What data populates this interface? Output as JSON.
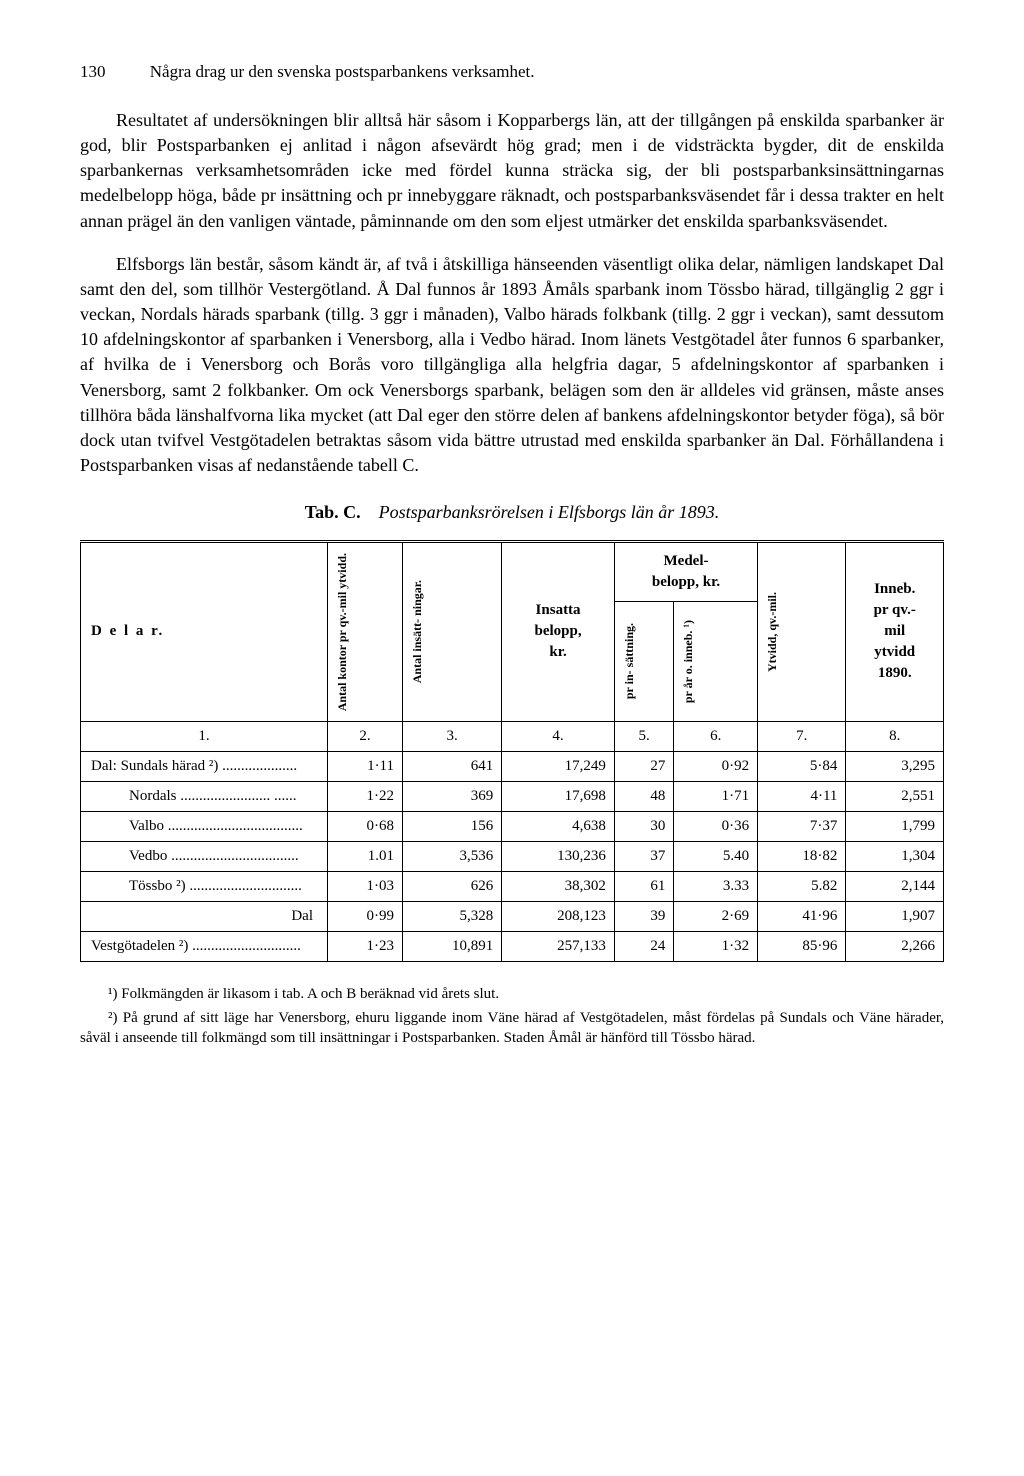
{
  "header": {
    "page_number": "130",
    "running_title": "Några drag ur den svenska postsparbankens verksamhet."
  },
  "paragraphs": {
    "p1": "Resultatet af undersökningen blir alltså här såsom i Kopparbergs län, att der tillgången på enskilda sparbanker är god, blir Postsparbanken ej anlitad i någon afsevärdt hög grad; men i de vidsträckta bygder, dit de enskilda sparbankernas verksamhetsområden icke med fördel kunna sträcka sig, der bli postsparbanksinsättningarnas medelbelopp höga, både pr insättning och pr innebyggare räknadt, och postsparbanksväsendet får i dessa trakter en helt annan prägel än den vanligen väntade, påminnande om den som eljest utmärker det enskilda sparbanksväsendet.",
    "p2": "Elfsborgs län består, såsom kändt är, af två i åtskilliga hänseenden väsentligt olika delar, nämligen landskapet Dal samt den del, som tillhör Vestergötland. Å Dal funnos år 1893 Åmåls sparbank inom Tössbo härad, tillgänglig 2 ggr i veckan, Nordals härads sparbank (tillg. 3 ggr i månaden), Valbo härads folkbank (tillg. 2 ggr i veckan), samt dessutom 10 afdelningskontor af sparbanken i Venersborg, alla i Vedbo härad. Inom länets Vestgötadel åter funnos 6 sparbanker, af hvilka de i Venersborg och Borås voro tillgängliga alla helgfria dagar, 5 afdelningskontor af sparbanken i Venersborg, samt 2 folkbanker. Om ock Venersborgs sparbank, belägen som den är alldeles vid gränsen, måste anses tillhöra båda länshalfvorna lika mycket (att Dal eger den större delen af bankens afdelningskontor betyder föga), så bör dock utan tvifvel Vestgötadelen betraktas såsom vida bättre utrustad med enskilda sparbanker än Dal. Förhållandena i Postsparbanken visas af nedanstående tabell C."
  },
  "table": {
    "title_label": "Tab. C.",
    "title_desc": "Postsparbanksrörelsen i Elfsborgs län år 1893.",
    "headers": {
      "delar": "D e l a r.",
      "col2": "Antal kontor\npr qv.-mil\nytvidd.",
      "col3": "Antal insätt-\nningar.",
      "col4_top": "Insatta",
      "col4_mid": "belopp,",
      "col4_bot": "kr.",
      "col5_group_top": "Medel-",
      "col5_group_bot": "belopp, kr.",
      "col5": "pr in-\nsättning.",
      "col6": "pr år o.\ninneb. ¹)",
      "col7": "Ytvidd,\nqv.-mil.",
      "col8_l1": "Inneb.",
      "col8_l2": "pr qv.-",
      "col8_l3": "mil",
      "col8_l4": "ytvidd",
      "col8_l5": "1890."
    },
    "numrow": [
      "1.",
      "2.",
      "3.",
      "4.",
      "5.",
      "6.",
      "7.",
      "8."
    ],
    "rows": [
      {
        "label": "Dal: Sundals härad ²) ....................",
        "c2": "1·11",
        "c3": "641",
        "c4": "17,249",
        "c5": "27",
        "c6": "0·92",
        "c7": "5·84",
        "c8": "3,295"
      },
      {
        "label": "Nordals ........................ ......",
        "c2": "1·22",
        "c3": "369",
        "c4": "17,698",
        "c5": "48",
        "c6": "1·71",
        "c7": "4·11",
        "c8": "2,551"
      },
      {
        "label": "Valbo ....................................",
        "c2": "0·68",
        "c3": "156",
        "c4": "4,638",
        "c5": "30",
        "c6": "0·36",
        "c7": "7·37",
        "c8": "1,799"
      },
      {
        "label": "Vedbo ..................................",
        "c2": "1.01",
        "c3": "3,536",
        "c4": "130,236",
        "c5": "37",
        "c6": "5.40",
        "c7": "18·82",
        "c8": "1,304"
      },
      {
        "label": "Tössbo ²) ..............................",
        "c2": "1·03",
        "c3": "626",
        "c4": "38,302",
        "c5": "61",
        "c6": "3.33",
        "c7": "5.82",
        "c8": "2,144"
      }
    ],
    "subtotal": {
      "label": "Dal",
      "c2": "0·99",
      "c3": "5,328",
      "c4": "208,123",
      "c5": "39",
      "c6": "2·69",
      "c7": "41·96",
      "c8": "1,907"
    },
    "lastrow": {
      "label": "Vestgötadelen ²) .............................",
      "c2": "1·23",
      "c3": "10,891",
      "c4": "257,133",
      "c5": "24",
      "c6": "1·32",
      "c7": "85·96",
      "c8": "2,266"
    }
  },
  "footnotes": {
    "f1": "¹) Folkmängden är likasom i tab. A och B beräknad vid årets slut.",
    "f2": "²) På grund af sitt läge har Venersborg, ehuru liggande inom Väne härad af Vestgötadelen, måst fördelas på Sundals och Väne härader, såväl i anseende till folkmängd som till insättningar i Postsparbanken. Staden Åmål är hänförd till Tössbo härad."
  }
}
